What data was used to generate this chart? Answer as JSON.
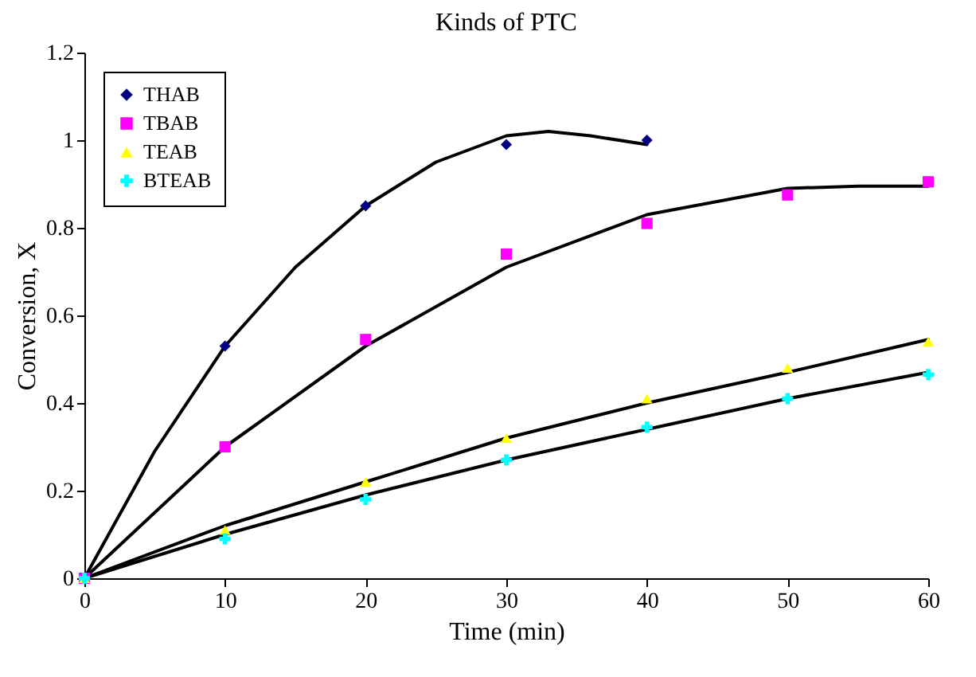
{
  "chart_data": {
    "type": "scatter",
    "title": "Kinds of PTC",
    "xlabel": "Time (min)",
    "ylabel": "Conversion, X",
    "xlim": [
      0,
      60
    ],
    "xticks": [
      0,
      10,
      20,
      30,
      40,
      50,
      60
    ],
    "ylim": [
      0,
      1.2
    ],
    "yticks": [
      0,
      0.2,
      0.4,
      0.6,
      0.8,
      1,
      1.2
    ],
    "grid": false,
    "legend": "top left",
    "x": [
      0,
      10,
      20,
      30,
      40,
      50,
      60
    ],
    "series": [
      {
        "name": "THAB",
        "color": "#000080",
        "marker": "diamond",
        "x": [
          10,
          20,
          30,
          40
        ],
        "values": [
          0.53,
          0.85,
          0.99,
          1.0
        ]
      },
      {
        "name": "TBAB",
        "color": "#ff00ff",
        "marker": "square",
        "values": [
          0,
          0.3,
          0.545,
          0.74,
          0.81,
          0.875,
          0.905
        ]
      },
      {
        "name": "TEAB",
        "color": "#ffff00",
        "marker": "triangle",
        "values": [
          0,
          0.11,
          0.22,
          0.32,
          0.41,
          0.48,
          0.54
        ]
      },
      {
        "name": "BTEAB",
        "color": "#00ffff",
        "marker": "cross",
        "values": [
          0,
          0.09,
          0.18,
          0.27,
          0.345,
          0.41,
          0.465
        ]
      },
      {
        "type": "line",
        "color": "#000000",
        "x": [
          0,
          5,
          10,
          15,
          20,
          25,
          30,
          33,
          36,
          40
        ],
        "values": [
          0,
          0.29,
          0.53,
          0.71,
          0.85,
          0.95,
          1.01,
          1.02,
          1.01,
          0.99
        ]
      },
      {
        "type": "line",
        "color": "#000000",
        "x": [
          0,
          10,
          20,
          30,
          40,
          50,
          55,
          60
        ],
        "values": [
          0,
          0.3,
          0.53,
          0.71,
          0.83,
          0.89,
          0.895,
          0.895
        ]
      },
      {
        "type": "line",
        "color": "#000000",
        "x": [
          0,
          10,
          20,
          30,
          40,
          50,
          60
        ],
        "values": [
          0,
          0.12,
          0.22,
          0.32,
          0.4,
          0.47,
          0.545
        ]
      },
      {
        "type": "line",
        "color": "#000000",
        "x": [
          0,
          10,
          20,
          30,
          40,
          50,
          60
        ],
        "values": [
          0,
          0.1,
          0.19,
          0.27,
          0.34,
          0.41,
          0.47
        ]
      }
    ]
  }
}
